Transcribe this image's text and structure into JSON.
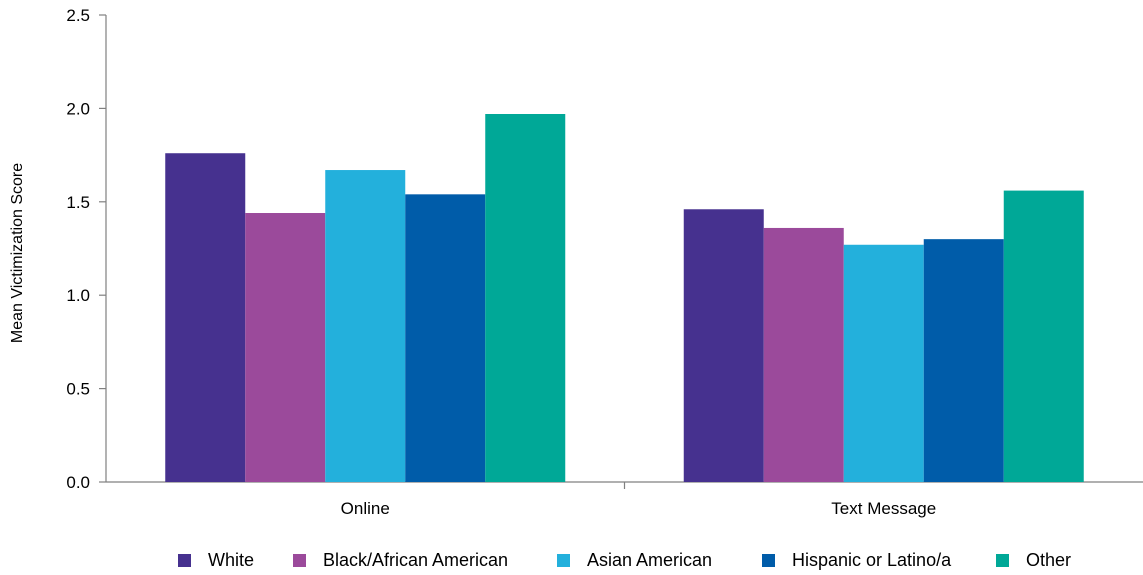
{
  "chart_data": {
    "type": "bar",
    "categories": [
      "Online",
      "Text Message"
    ],
    "series": [
      {
        "name": "White",
        "color": "#46318f",
        "values": [
          1.76,
          1.46
        ]
      },
      {
        "name": "Black/African American",
        "color": "#9b4a9b",
        "values": [
          1.44,
          1.36
        ]
      },
      {
        "name": "Asian American",
        "color": "#23b0dc",
        "values": [
          1.67,
          1.27
        ]
      },
      {
        "name": "Hispanic or Latino/a",
        "color": "#005ca9",
        "values": [
          1.54,
          1.3
        ]
      },
      {
        "name": "Other",
        "color": "#00a897",
        "values": [
          1.97,
          1.56
        ]
      }
    ],
    "ylabel": "Mean Victimization Score",
    "xlabel": "",
    "ylim": [
      0,
      2.5
    ],
    "yticks": [
      "0.0",
      "0.5",
      "1.0",
      "1.5",
      "2.0",
      "2.5"
    ],
    "grid": false,
    "legend_position": "bottom"
  }
}
